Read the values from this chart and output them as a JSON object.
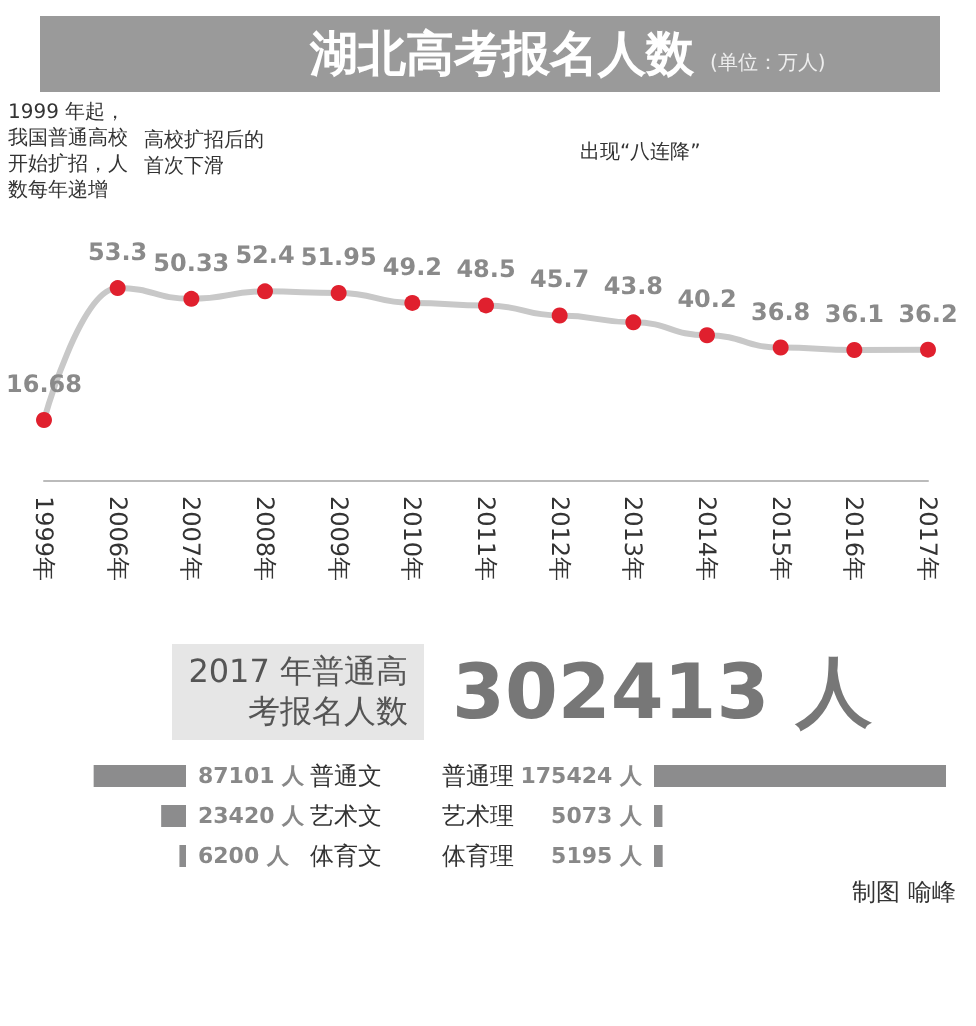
{
  "chart_data": [
    {
      "type": "line",
      "title": "湖北高考报名人数",
      "subtitle": "(单位：万人)",
      "categories": [
        "1999年",
        "2006年",
        "2007年",
        "2008年",
        "2009年",
        "2010年",
        "2011年",
        "2012年",
        "2013年",
        "2014年",
        "2015年",
        "2016年",
        "2017年"
      ],
      "values": [
        16.68,
        53.3,
        50.33,
        52.4,
        51.95,
        49.2,
        48.5,
        45.7,
        43.8,
        40.2,
        36.8,
        36.1,
        36.2
      ],
      "color": "#e0202e",
      "data_labels": true,
      "marker": "circle",
      "grid": false,
      "annotations": [
        "1999 年起，我国普通高校开始扩招，人数每年递增",
        "高校扩招后的首次下滑",
        "出现“八连降”"
      ]
    },
    {
      "type": "other",
      "title": "2017 年普通高考报名人数",
      "annotations": [
        "302413 人"
      ]
    },
    {
      "type": "bar",
      "orientation": "horizontal",
      "categories": [
        "普通文",
        "艺术文",
        "体育文"
      ],
      "values": [
        87101,
        23420,
        6200
      ],
      "value_labels": [
        "87101 人",
        "23420 人",
        "6200 人"
      ],
      "color": "#8c8c8d"
    },
    {
      "type": "bar",
      "orientation": "horizontal",
      "categories": [
        "普通理",
        "艺术理",
        "体育理"
      ],
      "values": [
        175424,
        5073,
        5195
      ],
      "value_labels": [
        "175424 人",
        "5073 人",
        "5195 人"
      ],
      "color": "#8c8c8d",
      "annotations": [
        "制图 喻峰"
      ]
    }
  ]
}
